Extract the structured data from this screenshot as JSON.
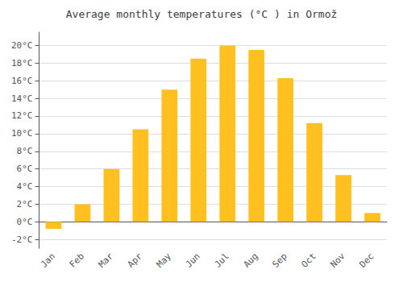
{
  "chart_data": {
    "type": "bar",
    "title": "Average monthly temperatures (°C ) in Ormož",
    "categories": [
      "Jan",
      "Feb",
      "Mar",
      "Apr",
      "May",
      "Jun",
      "Jul",
      "Aug",
      "Sep",
      "Oct",
      "Nov",
      "Dec"
    ],
    "values": [
      -0.8,
      2.0,
      6.0,
      10.5,
      15.0,
      18.5,
      20.0,
      19.5,
      16.3,
      11.2,
      5.3,
      1.0
    ],
    "color": "#FFC020",
    "ylim": [
      -3.0,
      21.5
    ],
    "yticks": [
      {
        "value": -2,
        "label": "-2°C"
      },
      {
        "value": 0,
        "label": "0°C"
      },
      {
        "value": 2,
        "label": "2°C"
      },
      {
        "value": 4,
        "label": "4°C"
      },
      {
        "value": 6,
        "label": "6°C"
      },
      {
        "value": 8,
        "label": "8°C"
      },
      {
        "value": 10,
        "label": "10°C"
      },
      {
        "value": 12,
        "label": "12°C"
      },
      {
        "value": 14,
        "label": "14°C"
      },
      {
        "value": 16,
        "label": "16°C"
      },
      {
        "value": 18,
        "label": "18°C"
      },
      {
        "value": 20,
        "label": "20°C"
      }
    ],
    "grid": true
  }
}
